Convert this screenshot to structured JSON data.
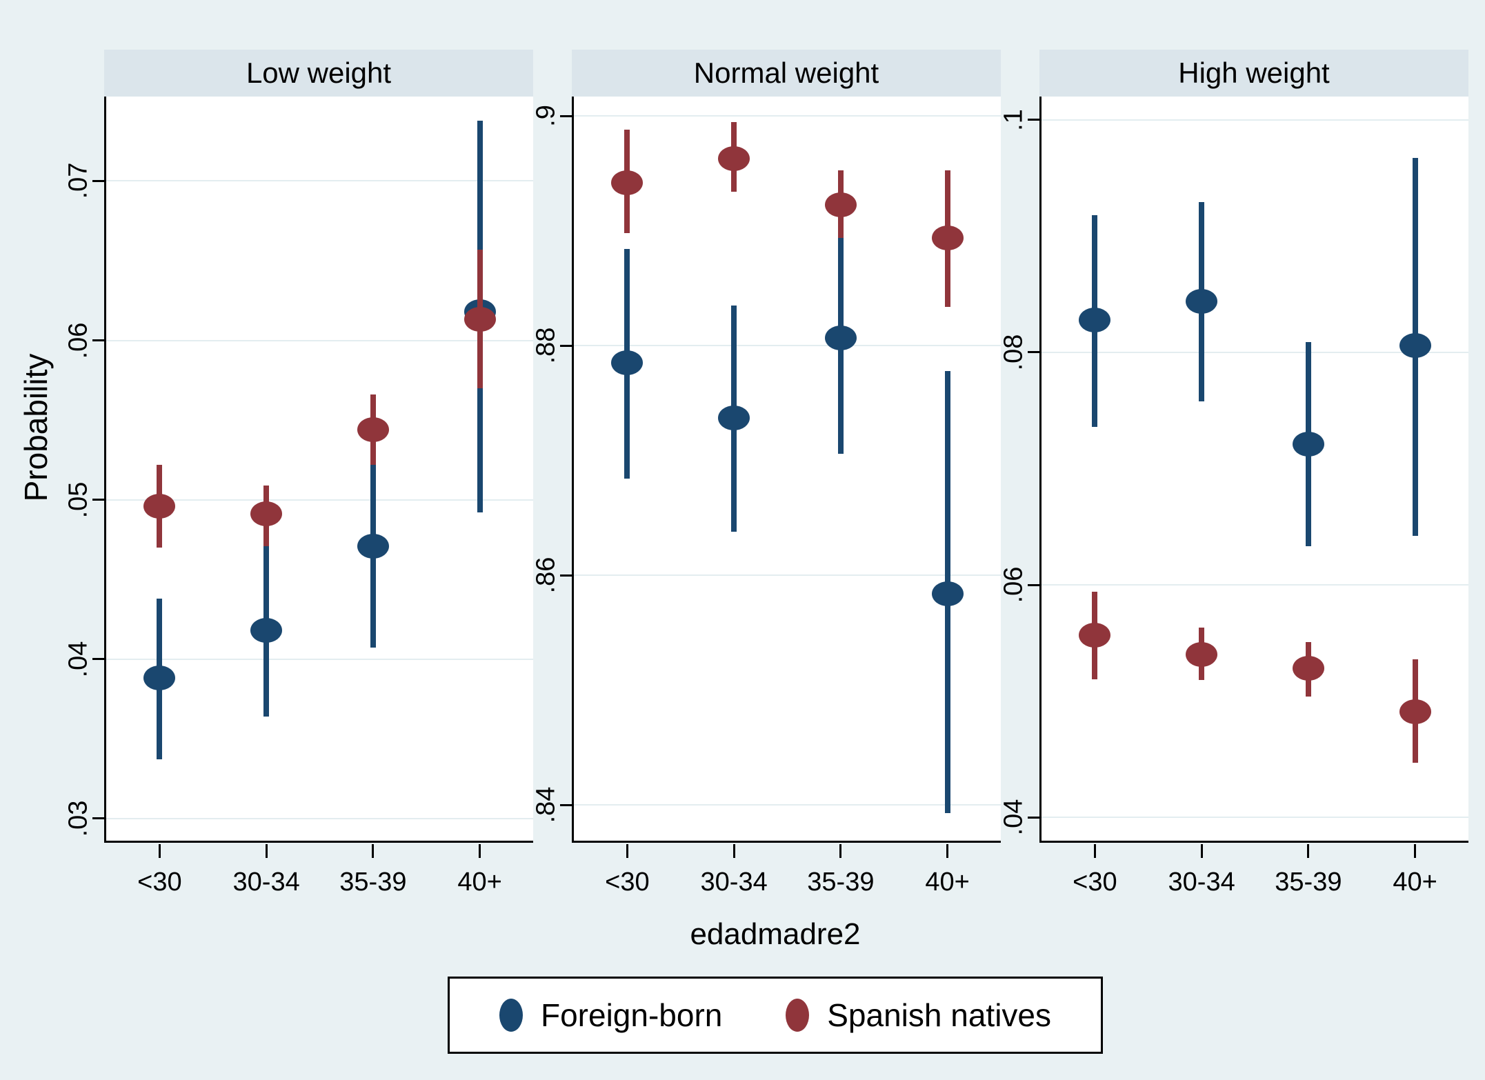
{
  "figure": {
    "background_color": "#e9f1f3",
    "plot_background_color": "#ffffff",
    "panel_header_color": "#dbe5eb",
    "gridline_color": "#e3edf0",
    "axis_color": "#000000"
  },
  "y_axis_title": "Probability",
  "x_axis_title": "edadmadre2",
  "legend": [
    {
      "label": "Foreign-born",
      "color": "#1a476f",
      "marker": "circle"
    },
    {
      "label": "Spanish natives",
      "color": "#90353b",
      "marker": "circle"
    }
  ],
  "chart_data": {
    "type": "scatter",
    "subtype": "point-estimates-with-95pct-confidence-intervals",
    "categories": [
      "<30",
      "30-34",
      "35-39",
      "40+"
    ],
    "grid": true,
    "legend_position": "bottom",
    "panels": [
      {
        "title": "Low weight",
        "ylim": [
          0.0286,
          0.0753
        ],
        "yticks": [
          0.03,
          0.04,
          0.05,
          0.06,
          0.07
        ],
        "ytick_labels": [
          ".03",
          ".04",
          ".05",
          ".06",
          ".07"
        ],
        "series": [
          {
            "name": "Foreign-born",
            "color": "#1a476f",
            "means": [
              0.0388,
              0.0418,
              0.0471,
              0.0618
            ],
            "ci_low": [
              0.0337,
              0.0364,
              0.0407,
              0.0492
            ],
            "ci_high": [
              0.0438,
              0.0471,
              0.0525,
              0.0738
            ]
          },
          {
            "name": "Spanish natives",
            "color": "#90353b",
            "means": [
              0.0496,
              0.0491,
              0.0544,
              0.0613
            ],
            "ci_low": [
              0.047,
              0.0471,
              0.0522,
              0.057
            ],
            "ci_high": [
              0.0522,
              0.0509,
              0.0566,
              0.0657
            ]
          }
        ]
      },
      {
        "title": "Normal weight",
        "ylim": [
          0.8369,
          0.9017
        ],
        "yticks": [
          0.84,
          0.86,
          0.88,
          0.9
        ],
        "ytick_labels": [
          ".84",
          ".86",
          ".88",
          ".9"
        ],
        "series": [
          {
            "name": "Foreign-born",
            "color": "#1a476f",
            "means": [
              0.8785,
              0.8737,
              0.8807,
              0.8584
            ],
            "ci_low": [
              0.8684,
              0.8638,
              0.8706,
              0.8393
            ],
            "ci_high": [
              0.8884,
              0.8835,
              0.8894,
              0.8778
            ]
          },
          {
            "name": "Spanish natives",
            "color": "#90353b",
            "means": [
              0.8942,
              0.8963,
              0.8923,
              0.8894
            ],
            "ci_low": [
              0.8898,
              0.8934,
              0.8894,
              0.8834
            ],
            "ci_high": [
              0.8988,
              0.8995,
              0.8953,
              0.8953
            ]
          }
        ]
      },
      {
        "title": "High weight",
        "ylim": [
          0.038,
          0.102
        ],
        "yticks": [
          0.04,
          0.06,
          0.08,
          0.1
        ],
        "ytick_labels": [
          ".04",
          ".06",
          ".08",
          ".1"
        ],
        "series": [
          {
            "name": "Foreign-born",
            "color": "#1a476f",
            "means": [
              0.0828,
              0.0844,
              0.0721,
              0.0806
            ],
            "ci_low": [
              0.0736,
              0.0758,
              0.0633,
              0.0642
            ],
            "ci_high": [
              0.0918,
              0.0929,
              0.0809,
              0.0967
            ]
          },
          {
            "name": "Spanish natives",
            "color": "#90353b",
            "means": [
              0.0557,
              0.054,
              0.0528,
              0.0491
            ],
            "ci_low": [
              0.0519,
              0.0518,
              0.0504,
              0.0447
            ],
            "ci_high": [
              0.0594,
              0.0563,
              0.0551,
              0.0536
            ]
          }
        ]
      }
    ]
  }
}
